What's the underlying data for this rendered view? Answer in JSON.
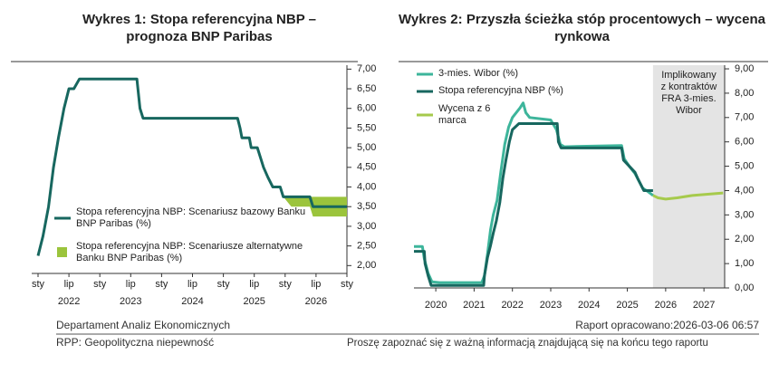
{
  "chart_data": [
    {
      "type": "line",
      "title": "Wykres 1: Stopa referencyjna NBP – prognoza BNP Paribas",
      "xlim": [
        2022.0,
        2027.0
      ],
      "ylim": [
        1.8,
        7.1
      ],
      "xticks": [
        {
          "value": 2022.0,
          "label": "sty"
        },
        {
          "value": 2022.5,
          "label": "lip"
        },
        {
          "value": 2023.0,
          "label": "sty"
        },
        {
          "value": 2023.5,
          "label": "lip"
        },
        {
          "value": 2024.0,
          "label": "sty"
        },
        {
          "value": 2024.5,
          "label": "lip"
        },
        {
          "value": 2025.0,
          "label": "sty"
        },
        {
          "value": 2025.5,
          "label": "lip"
        },
        {
          "value": 2026.0,
          "label": "sty"
        },
        {
          "value": 2026.5,
          "label": "lip"
        },
        {
          "value": 2027.0,
          "label": "sty"
        }
      ],
      "year_labels": [
        {
          "value": 2022.5,
          "label": "2022"
        },
        {
          "value": 2023.5,
          "label": "2023"
        },
        {
          "value": 2024.5,
          "label": "2024"
        },
        {
          "value": 2025.5,
          "label": "2025"
        },
        {
          "value": 2026.5,
          "label": "2026"
        }
      ],
      "yticks": [
        {
          "value": 2.0,
          "label": "2,00"
        },
        {
          "value": 2.5,
          "label": "2,50"
        },
        {
          "value": 3.0,
          "label": "3,00"
        },
        {
          "value": 3.5,
          "label": "3,50"
        },
        {
          "value": 4.0,
          "label": "4,00"
        },
        {
          "value": 4.5,
          "label": "4,50"
        },
        {
          "value": 5.0,
          "label": "5,00"
        },
        {
          "value": 5.5,
          "label": "5,50"
        },
        {
          "value": 6.0,
          "label": "6,00"
        },
        {
          "value": 6.5,
          "label": "6,50"
        },
        {
          "value": 7.0,
          "label": "7,00"
        }
      ],
      "series": [
        {
          "name": "Stopa referencyjna NBP: Scenariusz bazowy Banku BNP Paribas (%)",
          "color": "#17675f",
          "x": [
            2022.0,
            2022.08,
            2022.17,
            2022.25,
            2022.33,
            2022.42,
            2022.5,
            2022.58,
            2022.67,
            2023.6,
            2023.65,
            2023.7,
            2025.23,
            2025.27,
            2025.3,
            2025.42,
            2025.45,
            2025.55,
            2025.6,
            2025.65,
            2025.72,
            2025.8,
            2025.92,
            2025.97,
            2026.4,
            2026.45,
            2027.0
          ],
          "values": [
            2.25,
            2.75,
            3.5,
            4.5,
            5.25,
            6.0,
            6.5,
            6.5,
            6.75,
            6.75,
            6.0,
            5.75,
            5.75,
            5.5,
            5.25,
            5.25,
            5.0,
            5.0,
            4.75,
            4.5,
            4.25,
            4.0,
            4.0,
            3.75,
            3.75,
            3.5,
            3.5
          ]
        }
      ],
      "range_series": [
        {
          "name": "Stopa referencyjna NBP: Scenariusze alternatywne Banku BNP Paribas (%)",
          "color": "#9bc43c",
          "x": [
            2025.97,
            2026.1,
            2026.4,
            2026.45,
            2027.0
          ],
          "low": [
            3.75,
            3.5,
            3.5,
            3.25,
            3.25
          ],
          "high": [
            3.75,
            3.75,
            3.75,
            3.75,
            3.75
          ]
        }
      ]
    },
    {
      "type": "line",
      "title": "Wykres 2: Przyszła ścieżka stóp procentowych – wycena rynkowa",
      "xlim": [
        2019.93,
        2028.04
      ],
      "ylim": [
        0,
        9.15
      ],
      "xticks": [
        {
          "value": 2020.5,
          "label": "2020"
        },
        {
          "value": 2021.5,
          "label": "2021"
        },
        {
          "value": 2022.5,
          "label": "2022"
        },
        {
          "value": 2023.5,
          "label": "2023"
        },
        {
          "value": 2024.5,
          "label": "2024"
        },
        {
          "value": 2025.5,
          "label": "2025"
        },
        {
          "value": 2026.5,
          "label": "2026"
        },
        {
          "value": 2027.5,
          "label": "2027"
        }
      ],
      "yticks": [
        {
          "value": 0,
          "label": "0,00"
        },
        {
          "value": 1,
          "label": "1,00"
        },
        {
          "value": 2,
          "label": "2,00"
        },
        {
          "value": 3,
          "label": "3,00"
        },
        {
          "value": 4,
          "label": "4,00"
        },
        {
          "value": 5,
          "label": "5,00"
        },
        {
          "value": 6,
          "label": "6,00"
        },
        {
          "value": 7,
          "label": "7,00"
        },
        {
          "value": 8,
          "label": "8,00"
        },
        {
          "value": 9,
          "label": "9,00"
        }
      ],
      "shade_start": 2026.17,
      "shade_label": [
        "Implikowany",
        "z kontraktów",
        "FRA 3-mies.",
        "Wibor"
      ],
      "series": [
        {
          "name": "3-mies. Wibor (%)",
          "color": "#3db59b",
          "x": [
            2019.93,
            2020.15,
            2020.2,
            2020.3,
            2020.4,
            2020.6,
            2021.7,
            2021.77,
            2021.85,
            2021.93,
            2022.0,
            2022.1,
            2022.2,
            2022.3,
            2022.4,
            2022.5,
            2022.6,
            2022.7,
            2022.78,
            2022.85,
            2022.95,
            2023.5,
            2023.65,
            2023.75,
            2023.85,
            2025.35,
            2025.42,
            2025.55,
            2025.7,
            2025.8,
            2025.9,
            2026.0,
            2026.17
          ],
          "values": [
            1.7,
            1.7,
            1.2,
            0.6,
            0.25,
            0.22,
            0.22,
            0.5,
            1.4,
            2.4,
            3.0,
            3.6,
            4.8,
            5.9,
            6.6,
            7.0,
            7.2,
            7.4,
            7.6,
            7.2,
            7.0,
            6.9,
            6.5,
            5.9,
            5.8,
            5.85,
            5.3,
            5.0,
            4.7,
            4.4,
            4.1,
            4.0,
            3.8
          ]
        },
        {
          "name": "Stopa referencyjna NBP (%)",
          "color": "#17675f",
          "x": [
            2019.93,
            2020.2,
            2020.22,
            2020.3,
            2020.38,
            2021.75,
            2021.77,
            2021.85,
            2021.93,
            2022.0,
            2022.08,
            2022.17,
            2022.25,
            2022.33,
            2022.42,
            2022.5,
            2022.67,
            2023.67,
            2023.7,
            2023.77,
            2025.35,
            2025.4,
            2025.55,
            2025.7,
            2025.77,
            2025.85,
            2025.93,
            2026.17
          ],
          "values": [
            1.5,
            1.5,
            1.0,
            0.5,
            0.1,
            0.1,
            0.5,
            1.25,
            1.75,
            2.25,
            2.75,
            3.5,
            4.5,
            5.25,
            6.0,
            6.5,
            6.75,
            6.75,
            6.0,
            5.75,
            5.75,
            5.25,
            5.0,
            4.75,
            4.5,
            4.25,
            4.0,
            4.0
          ]
        },
        {
          "name": "Wycena z 6 marca",
          "color": "#a6ca4c",
          "x": [
            2026.17,
            2026.3,
            2026.5,
            2026.8,
            2027.2,
            2027.6,
            2028.0
          ],
          "values": [
            3.8,
            3.7,
            3.65,
            3.7,
            3.8,
            3.85,
            3.9
          ]
        }
      ]
    }
  ],
  "footer": {
    "department": "Departament Analiz Ekonomicznych",
    "report_date": "Raport opracowano:2026-03-06 06:57",
    "topic": "RPP: Geopolityczna niepewność",
    "notice": "Proszę zapoznać się z ważną informacją znajdującą się na końcu tego raportu"
  }
}
